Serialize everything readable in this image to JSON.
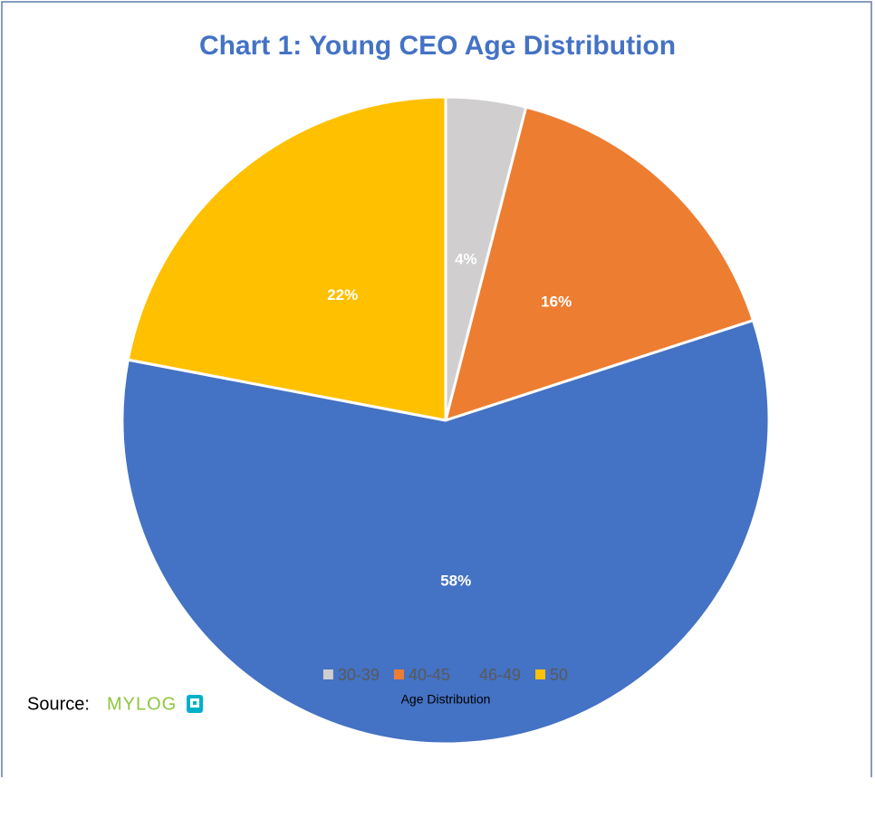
{
  "chart_data": {
    "type": "pie",
    "title": "Chart 1: Young CEO Age Distribution",
    "categories": [
      "30-39",
      "40-45",
      "46-49",
      "50"
    ],
    "values": [
      4,
      16,
      58,
      22
    ],
    "value_labels": [
      "4%",
      "16%",
      "58%",
      "22%"
    ],
    "colors": [
      "#d0cece",
      "#ed7d31",
      "#4472c4",
      "#ffc000"
    ],
    "series_name": "Age Distribution",
    "legend": "bottom"
  },
  "source": "Source:",
  "logo": "MYLOG"
}
